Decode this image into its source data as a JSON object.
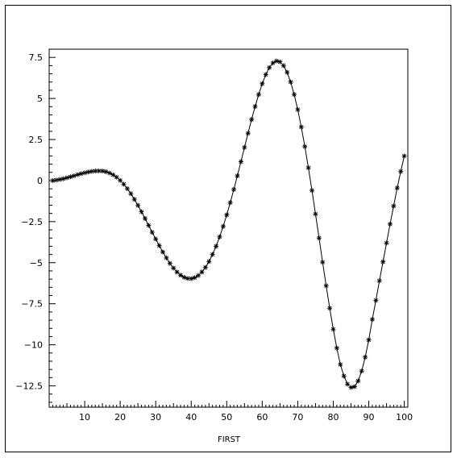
{
  "chart_data": {
    "type": "line",
    "xlabel": "FIRST",
    "ylabel": "",
    "xlim": [
      0,
      101
    ],
    "ylim": [
      -13.8,
      8
    ],
    "xticks": [
      10,
      20,
      30,
      40,
      50,
      60,
      70,
      80,
      90,
      100
    ],
    "yticks": [
      7.5,
      5,
      2.5,
      0,
      -2.5,
      -5,
      -7.5,
      -10,
      -12.5
    ],
    "xtick_labels": [
      "10",
      "20",
      "30",
      "40",
      "50",
      "60",
      "70",
      "80",
      "90",
      "100"
    ],
    "ytick_labels": [
      "7.5",
      "5",
      "2.5",
      "0",
      "−2.5",
      "−5",
      "−7.5",
      "−10",
      "−12.5"
    ],
    "grid": false,
    "marker": "asterisk",
    "line_color": "#000000",
    "series": [
      {
        "x": [
          1,
          2,
          3,
          4,
          5,
          6,
          7,
          8,
          9,
          10,
          11,
          12,
          13,
          14,
          15,
          16,
          17,
          18,
          19,
          20,
          21,
          22,
          23,
          24,
          25,
          26,
          27,
          28,
          29,
          30,
          31,
          32,
          33,
          34,
          35,
          36,
          37,
          38,
          39,
          40,
          41,
          42,
          43,
          44,
          45,
          46,
          47,
          48,
          49,
          50,
          51,
          52,
          53,
          54,
          55,
          56,
          57,
          58,
          59,
          60,
          61,
          62,
          63,
          64,
          65,
          66,
          67,
          68,
          69,
          70,
          71,
          72,
          73,
          74,
          75,
          76,
          77,
          78,
          79,
          80,
          81,
          82,
          83,
          84,
          85,
          86,
          87,
          88,
          89,
          90,
          91,
          92,
          93,
          94,
          95,
          96,
          97,
          98,
          99,
          100
        ],
        "y": [
          0.0,
          0.03,
          0.07,
          0.11,
          0.17,
          0.23,
          0.29,
          0.36,
          0.42,
          0.47,
          0.52,
          0.56,
          0.58,
          0.59,
          0.58,
          0.54,
          0.46,
          0.35,
          0.2,
          0.01,
          -0.22,
          -0.49,
          -0.8,
          -1.14,
          -1.51,
          -1.9,
          -2.31,
          -2.73,
          -3.15,
          -3.56,
          -3.96,
          -4.35,
          -4.71,
          -5.04,
          -5.33,
          -5.57,
          -5.76,
          -5.89,
          -5.96,
          -5.97,
          -5.91,
          -5.78,
          -5.57,
          -5.29,
          -4.93,
          -4.5,
          -4.0,
          -3.43,
          -2.79,
          -2.09,
          -1.34,
          -0.54,
          0.29,
          1.15,
          2.02,
          2.88,
          3.72,
          4.51,
          5.24,
          5.9,
          6.45,
          6.88,
          7.16,
          7.28,
          7.23,
          7.0,
          6.59,
          6.0,
          5.24,
          4.32,
          3.26,
          2.07,
          0.78,
          -0.6,
          -2.04,
          -3.5,
          -4.97,
          -6.4,
          -7.77,
          -9.05,
          -10.2,
          -11.2,
          -11.9,
          -12.4,
          -12.6,
          -12.55,
          -12.2,
          -11.6,
          -10.75,
          -9.7,
          -8.45,
          -7.3,
          -6.1,
          -4.95,
          -3.8,
          -2.65,
          -1.55,
          -0.45,
          0.55,
          1.5
        ]
      }
    ]
  }
}
